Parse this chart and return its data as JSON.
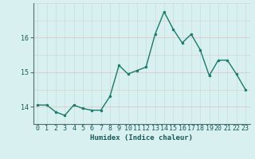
{
  "x": [
    0,
    1,
    2,
    3,
    4,
    5,
    6,
    7,
    8,
    9,
    10,
    11,
    12,
    13,
    14,
    15,
    16,
    17,
    18,
    19,
    20,
    21,
    22,
    23
  ],
  "y": [
    14.05,
    14.05,
    13.85,
    13.75,
    14.05,
    13.95,
    13.9,
    13.9,
    14.3,
    15.2,
    14.95,
    15.05,
    15.15,
    16.1,
    16.75,
    16.25,
    15.85,
    16.1,
    15.65,
    14.9,
    15.35,
    15.35,
    14.95,
    14.5
  ],
  "line_color": "#1a7a6a",
  "marker": "o",
  "marker_size": 2.0,
  "bg_color": "#d8f0f0",
  "grid_color_v": "#c8dede",
  "grid_color_h": "#e0c8c8",
  "xlabel": "Humidex (Indice chaleur)",
  "ylim": [
    13.5,
    17.0
  ],
  "xlim": [
    -0.5,
    23.5
  ],
  "yticks": [
    14,
    15,
    16
  ],
  "xticks": [
    0,
    1,
    2,
    3,
    4,
    5,
    6,
    7,
    8,
    9,
    10,
    11,
    12,
    13,
    14,
    15,
    16,
    17,
    18,
    19,
    20,
    21,
    22,
    23
  ],
  "xlabel_fontsize": 6.5,
  "tick_fontsize": 6.0,
  "line_width": 1.0,
  "spine_color": "#507070"
}
